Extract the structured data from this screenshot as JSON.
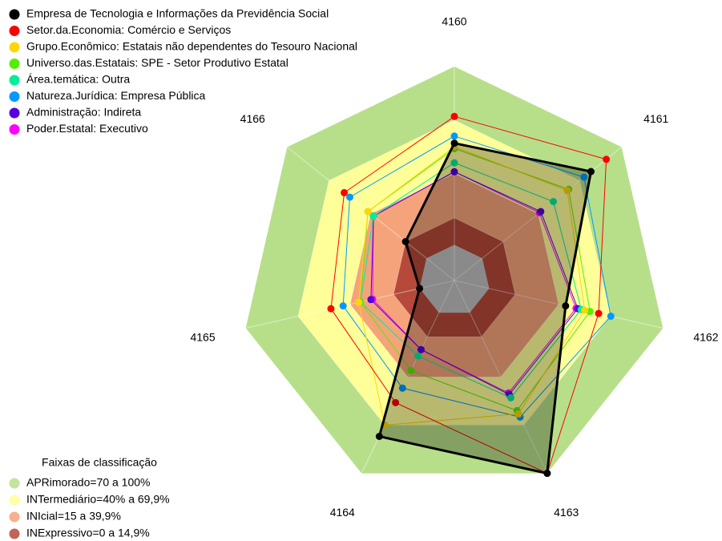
{
  "chart_data": {
    "type": "radar",
    "categories": [
      "4160",
      "4161",
      "4162",
      "4163",
      "4164",
      "4165",
      "4166"
    ],
    "rlim": [
      -20,
      100
    ],
    "series": [
      {
        "name": "Empresa de Tecnologia e Informações da Previdência Social",
        "color": "#000000",
        "values": [
          57,
          78,
          44,
          100,
          77,
          0,
          15
        ]
      },
      {
        "name": "Setor.da.Economia: Comércio e Serviços",
        "color": "#ff0000",
        "values": [
          72,
          89,
          63,
          100,
          56,
          51,
          59
        ]
      },
      {
        "name": "Grupo.Econômico: Estatais não dependentes do Tesouro Nacional",
        "color": "#ffd700",
        "values": [
          55,
          61,
          55,
          63,
          70,
          35,
          42
        ]
      },
      {
        "name": "Universo.das.Estatais: SPE - Setor Produtivo Estatal",
        "color": "#55ee00",
        "values": [
          54,
          62,
          58,
          61,
          36,
          34,
          42
        ]
      },
      {
        "name": "Área.temática: Outra",
        "color": "#00ee99",
        "values": [
          46,
          51,
          53,
          53,
          27,
          34,
          38
        ]
      },
      {
        "name": "Natureza.Jurídica: Empresa Pública",
        "color": "#0099ff",
        "values": [
          61,
          73,
          70,
          65,
          47,
          44,
          55
        ]
      },
      {
        "name": "Administração: Indireta",
        "color": "#5500dd",
        "values": [
          41,
          42,
          51,
          51,
          23,
          28,
          38
        ]
      },
      {
        "name": "Poder.Estatal: Executivo",
        "color": "#ff00ff",
        "values": [
          41,
          41,
          50,
          50,
          23,
          27,
          38
        ]
      }
    ],
    "bands_title": "Faixas de classificação",
    "bands": [
      {
        "name": "APRimorado=70 a 100%",
        "from": 70,
        "to": 100,
        "color": "#b7df8a"
      },
      {
        "name": "INTermediário=40% a 69,9%",
        "from": 40,
        "to": 69.9,
        "color": "#ffff99"
      },
      {
        "name": "INIcial=15 a 39,9%",
        "from": 15,
        "to": 39.9,
        "color": "#f5a37a"
      },
      {
        "name": "INExpressivo=0 a 14,9%",
        "from": 0,
        "to": 14.9,
        "color": "#b5493a"
      }
    ]
  }
}
